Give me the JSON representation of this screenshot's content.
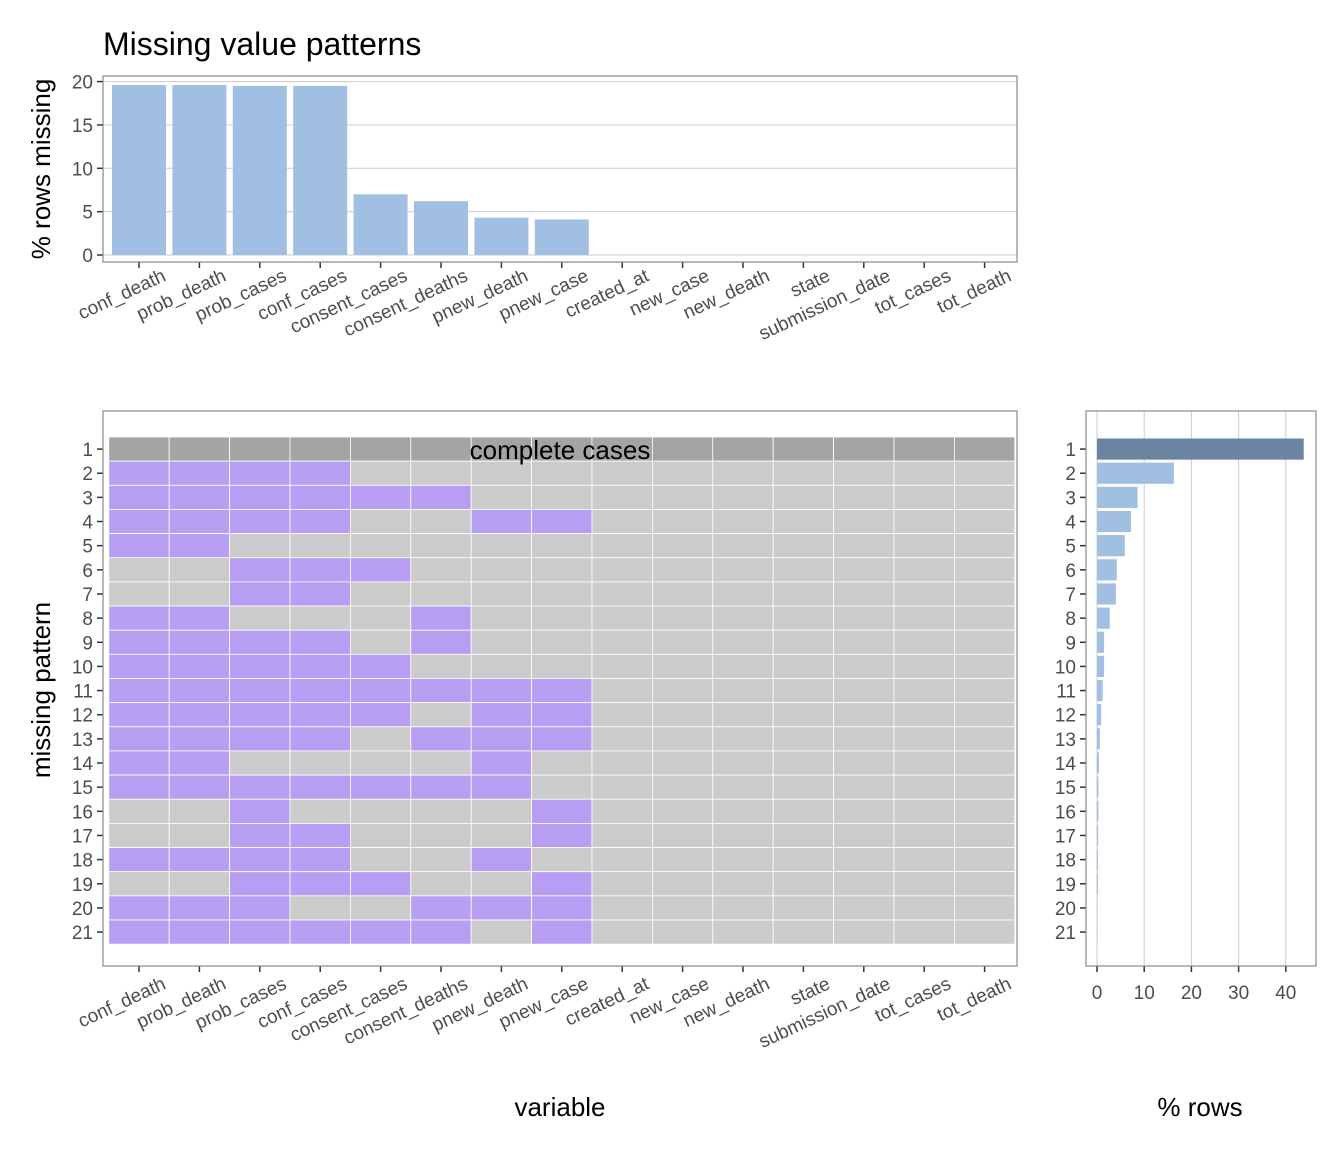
{
  "title": "Missing value patterns",
  "colors": {
    "missing": "#b79ef2",
    "present": "#cbcbcb",
    "complete": "#a4a4a4",
    "bar": "#a0bfe2",
    "bar_complete": "#6b84a2",
    "grid": "#cccccc",
    "frame": "#888888",
    "text": "#000000",
    "tick_text": "#4d4d4d"
  },
  "chart_data": [
    {
      "name": "top",
      "type": "bar",
      "categories": [
        "conf_death",
        "prob_death",
        "prob_cases",
        "conf_cases",
        "consent_cases",
        "consent_deaths",
        "pnew_death",
        "pnew_case",
        "created_at",
        "new_case",
        "new_death",
        "state",
        "submission_date",
        "tot_cases",
        "tot_death"
      ],
      "values": [
        19.6,
        19.6,
        19.5,
        19.5,
        7.0,
        6.2,
        4.3,
        4.1,
        0,
        0,
        0,
        0,
        0,
        0,
        0
      ],
      "ylabel": "% rows missing",
      "ylim": [
        0,
        20.5
      ],
      "yticks": [
        0,
        5,
        10,
        15,
        20
      ]
    },
    {
      "name": "tiles",
      "type": "heatmap",
      "xlabel": "variable",
      "ylabel": "missing pattern",
      "rows": [
        "1",
        "2",
        "3",
        "4",
        "5",
        "6",
        "7",
        "8",
        "9",
        "10",
        "11",
        "12",
        "13",
        "14",
        "15",
        "16",
        "17",
        "18",
        "19",
        "20",
        "21"
      ],
      "complete_label": "complete cases",
      "missing": [
        [
          0,
          0,
          0,
          0,
          0,
          0,
          0,
          0,
          0,
          0,
          0,
          0,
          0,
          0,
          0
        ],
        [
          1,
          1,
          1,
          1,
          0,
          0,
          0,
          0,
          0,
          0,
          0,
          0,
          0,
          0,
          0
        ],
        [
          1,
          1,
          1,
          1,
          1,
          1,
          0,
          0,
          0,
          0,
          0,
          0,
          0,
          0,
          0
        ],
        [
          1,
          1,
          1,
          1,
          0,
          0,
          1,
          1,
          0,
          0,
          0,
          0,
          0,
          0,
          0
        ],
        [
          1,
          1,
          0,
          0,
          0,
          0,
          0,
          0,
          0,
          0,
          0,
          0,
          0,
          0,
          0
        ],
        [
          0,
          0,
          1,
          1,
          1,
          0,
          0,
          0,
          0,
          0,
          0,
          0,
          0,
          0,
          0
        ],
        [
          0,
          0,
          1,
          1,
          0,
          0,
          0,
          0,
          0,
          0,
          0,
          0,
          0,
          0,
          0
        ],
        [
          1,
          1,
          0,
          0,
          0,
          1,
          0,
          0,
          0,
          0,
          0,
          0,
          0,
          0,
          0
        ],
        [
          1,
          1,
          1,
          1,
          0,
          1,
          0,
          0,
          0,
          0,
          0,
          0,
          0,
          0,
          0
        ],
        [
          1,
          1,
          1,
          1,
          1,
          0,
          0,
          0,
          0,
          0,
          0,
          0,
          0,
          0,
          0
        ],
        [
          1,
          1,
          1,
          1,
          1,
          1,
          1,
          1,
          0,
          0,
          0,
          0,
          0,
          0,
          0
        ],
        [
          1,
          1,
          1,
          1,
          1,
          0,
          1,
          1,
          0,
          0,
          0,
          0,
          0,
          0,
          0
        ],
        [
          1,
          1,
          1,
          1,
          0,
          1,
          1,
          1,
          0,
          0,
          0,
          0,
          0,
          0,
          0
        ],
        [
          1,
          1,
          0,
          0,
          0,
          0,
          1,
          0,
          0,
          0,
          0,
          0,
          0,
          0,
          0
        ],
        [
          1,
          1,
          1,
          1,
          1,
          1,
          1,
          0,
          0,
          0,
          0,
          0,
          0,
          0,
          0
        ],
        [
          0,
          0,
          1,
          0,
          0,
          0,
          0,
          1,
          0,
          0,
          0,
          0,
          0,
          0,
          0
        ],
        [
          0,
          0,
          1,
          1,
          0,
          0,
          0,
          1,
          0,
          0,
          0,
          0,
          0,
          0,
          0
        ],
        [
          1,
          1,
          1,
          1,
          0,
          0,
          1,
          0,
          0,
          0,
          0,
          0,
          0,
          0,
          0
        ],
        [
          0,
          0,
          1,
          1,
          1,
          0,
          0,
          1,
          0,
          0,
          0,
          0,
          0,
          0,
          0
        ],
        [
          1,
          1,
          1,
          0,
          0,
          1,
          1,
          1,
          0,
          0,
          0,
          0,
          0,
          0,
          0
        ],
        [
          1,
          1,
          1,
          1,
          1,
          1,
          0,
          1,
          0,
          0,
          0,
          0,
          0,
          0,
          0
        ]
      ]
    },
    {
      "name": "right",
      "type": "bar",
      "orientation": "horizontal",
      "categories": [
        "1",
        "2",
        "3",
        "4",
        "5",
        "6",
        "7",
        "8",
        "9",
        "10",
        "11",
        "12",
        "13",
        "14",
        "15",
        "16",
        "17",
        "18",
        "19",
        "20",
        "21"
      ],
      "values": [
        43.8,
        16.3,
        8.6,
        7.2,
        5.9,
        4.2,
        4.0,
        2.7,
        1.5,
        1.5,
        1.2,
        0.9,
        0.6,
        0.4,
        0.3,
        0.3,
        0.25,
        0.2,
        0.2,
        0.1,
        0.1
      ],
      "xlabel": "% rows",
      "xlim": [
        -0.5,
        46
      ],
      "xticks": [
        0,
        10,
        20,
        30,
        40
      ]
    }
  ]
}
